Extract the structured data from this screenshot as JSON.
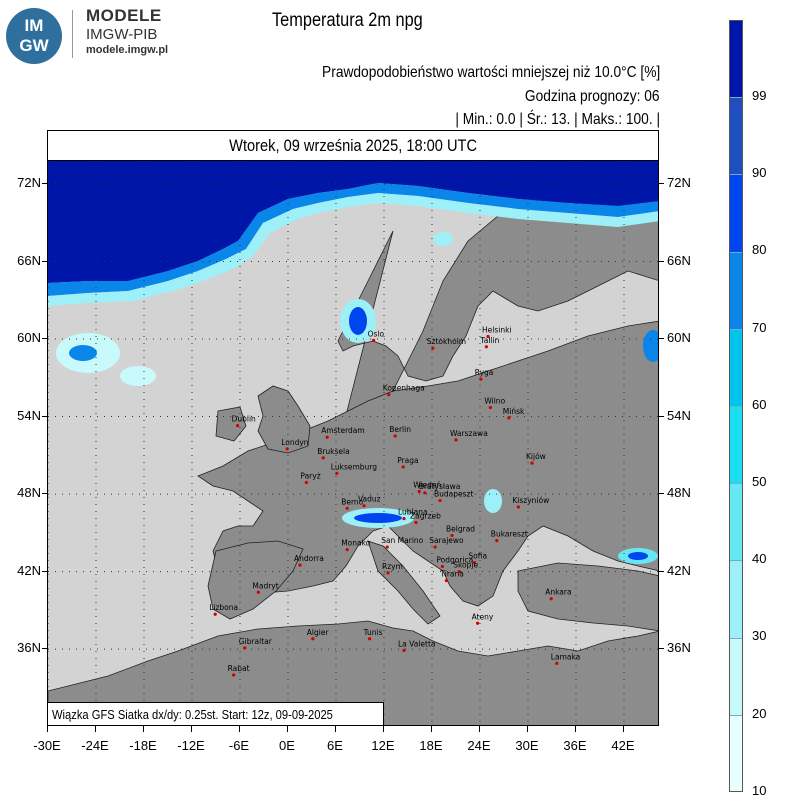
{
  "logo": {
    "line1": "IM",
    "line2": "GW"
  },
  "brand": {
    "name": "MODELE",
    "org": "IMGW-PIB",
    "url": "modele.imgw.pl"
  },
  "title": "Temperatura 2m npg",
  "subtitle": "Prawdopodobieństwo wartości mniejszej niż 10.0°C [%]",
  "forecast_hour": "Godzina prognozy: 06",
  "stats": "| Min.:     0.0 | Śr.:       13. | Maks.:    100. |",
  "date": "Wtorek, 09 września 2025, 18:00 UTC",
  "footer": "Wiązka GFS Siatka dx/dy: 0.25st. Start: 12z, 09-09-2025",
  "lat_labels": [
    "72N",
    "66N",
    "60N",
    "54N",
    "48N",
    "42N",
    "36N"
  ],
  "lon_labels": [
    "-30E",
    "-24E",
    "-18E",
    "-12E",
    "-6E",
    "0E",
    "6E",
    "12E",
    "18E",
    "24E",
    "30E",
    "36E",
    "42E"
  ],
  "colorbar": {
    "labels": [
      "99",
      "90",
      "80",
      "70",
      "60",
      "50",
      "40",
      "30",
      "20",
      "10"
    ],
    "colors": [
      "#e8ffff",
      "#c8fafc",
      "#9ef0f8",
      "#66e8f4",
      "#18e0f0",
      "#00c4ec",
      "#0a86ea",
      "#0046f0",
      "#1f4fbf",
      "#0016a8"
    ]
  },
  "cities": [
    {
      "name": "Oslo",
      "lon": 10.7,
      "lat": 59.9
    },
    {
      "name": "Sztokholm",
      "lon": 18.1,
      "lat": 59.3
    },
    {
      "name": "Helsinki",
      "lon": 25.0,
      "lat": 60.2
    },
    {
      "name": "Tallin",
      "lon": 24.8,
      "lat": 59.4
    },
    {
      "name": "Ryga",
      "lon": 24.1,
      "lat": 56.9
    },
    {
      "name": "Kopenhaga",
      "lon": 12.6,
      "lat": 55.7
    },
    {
      "name": "Wilno",
      "lon": 25.3,
      "lat": 54.7
    },
    {
      "name": "Mińsk",
      "lon": 27.6,
      "lat": 53.9
    },
    {
      "name": "Dublin",
      "lon": -6.3,
      "lat": 53.3
    },
    {
      "name": "Amsterdam",
      "lon": 4.9,
      "lat": 52.4
    },
    {
      "name": "Berlin",
      "lon": 13.4,
      "lat": 52.5
    },
    {
      "name": "Warszawa",
      "lon": 21.0,
      "lat": 52.2
    },
    {
      "name": "Londyn",
      "lon": -0.1,
      "lat": 51.5
    },
    {
      "name": "Bruksela",
      "lon": 4.4,
      "lat": 50.8
    },
    {
      "name": "Kijów",
      "lon": 30.5,
      "lat": 50.4
    },
    {
      "name": "Luksemburg",
      "lon": 6.1,
      "lat": 49.6
    },
    {
      "name": "Praga",
      "lon": 14.4,
      "lat": 50.1
    },
    {
      "name": "Paryż",
      "lon": 2.3,
      "lat": 48.9
    },
    {
      "name": "Wiedeń",
      "lon": 16.4,
      "lat": 48.2
    },
    {
      "name": "Bratysława",
      "lon": 17.1,
      "lat": 48.1
    },
    {
      "name": "Budapeszt",
      "lon": 19.0,
      "lat": 47.5
    },
    {
      "name": "Kiszyniów",
      "lon": 28.8,
      "lat": 47.0
    },
    {
      "name": "Berno",
      "lon": 7.4,
      "lat": 46.9
    },
    {
      "name": "Vaduz",
      "lon": 9.5,
      "lat": 47.1
    },
    {
      "name": "Lublana",
      "lon": 14.5,
      "lat": 46.1
    },
    {
      "name": "Zagrzeb",
      "lon": 16.0,
      "lat": 45.8
    },
    {
      "name": "Belgrad",
      "lon": 20.5,
      "lat": 44.8
    },
    {
      "name": "Bukareszt",
      "lon": 26.1,
      "lat": 44.4
    },
    {
      "name": "Sarajewo",
      "lon": 18.4,
      "lat": 43.9
    },
    {
      "name": "Monako",
      "lon": 7.4,
      "lat": 43.7
    },
    {
      "name": "San Marino",
      "lon": 12.4,
      "lat": 43.9
    },
    {
      "name": "Sofia",
      "lon": 23.3,
      "lat": 42.7
    },
    {
      "name": "Podgorica",
      "lon": 19.3,
      "lat": 42.4
    },
    {
      "name": "Skopje",
      "lon": 21.4,
      "lat": 42.0
    },
    {
      "name": "Andorra",
      "lon": 1.5,
      "lat": 42.5
    },
    {
      "name": "Rzym",
      "lon": 12.5,
      "lat": 41.9
    },
    {
      "name": "Tirana",
      "lon": 19.8,
      "lat": 41.3
    },
    {
      "name": "Madryt",
      "lon": -3.7,
      "lat": 40.4
    },
    {
      "name": "Ankara",
      "lon": 32.9,
      "lat": 39.9
    },
    {
      "name": "Lizbona",
      "lon": -9.1,
      "lat": 38.7
    },
    {
      "name": "Ateny",
      "lon": 23.7,
      "lat": 38.0
    },
    {
      "name": "Algier",
      "lon": 3.1,
      "lat": 36.8
    },
    {
      "name": "Tunis",
      "lon": 10.2,
      "lat": 36.8
    },
    {
      "name": "Gibraltar",
      "lon": -5.4,
      "lat": 36.1
    },
    {
      "name": "La Valetta",
      "lon": 14.5,
      "lat": 35.9
    },
    {
      "name": "Lamaka",
      "lon": 33.6,
      "lat": 34.9
    },
    {
      "name": "Rabat",
      "lon": -6.8,
      "lat": 34.0
    }
  ]
}
